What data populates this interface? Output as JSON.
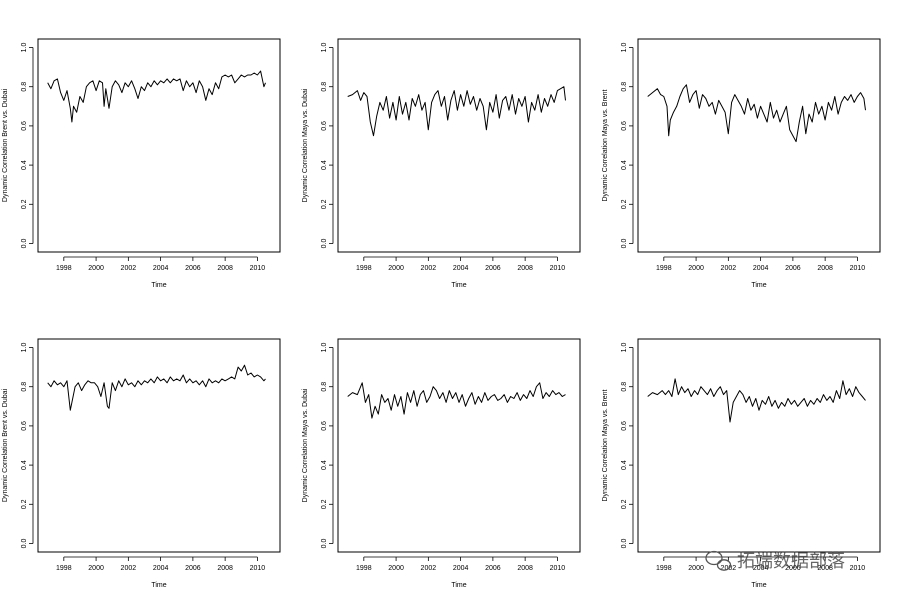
{
  "chart_data": [
    {
      "type": "line",
      "title": "",
      "xlabel": "Time",
      "ylabel": "Dynamic Correlation Brent vs. Dubai",
      "xlim": [
        1997.0,
        2010.8
      ],
      "ylim": [
        0.0,
        1.0
      ],
      "x_ticks": [
        "1998",
        "2000",
        "2002",
        "2004",
        "2006",
        "2008",
        "2010"
      ],
      "y_ticks": [
        "0.0",
        "0.2",
        "0.4",
        "0.6",
        "0.8",
        "1.0"
      ],
      "series": [
        {
          "x": [
            1997.0,
            1997.2,
            1997.4,
            1997.6,
            1997.8,
            1998.0,
            1998.2,
            1998.4,
            1998.5,
            1998.6,
            1998.8,
            1999.0,
            1999.2,
            1999.4,
            1999.6,
            1999.8,
            2000.0,
            2000.2,
            2000.4,
            2000.5,
            2000.6,
            2000.8,
            2001.0,
            2001.2,
            2001.4,
            2001.6,
            2001.8,
            2002.0,
            2002.2,
            2002.4,
            2002.6,
            2002.8,
            2003.0,
            2003.2,
            2003.4,
            2003.6,
            2003.8,
            2004.0,
            2004.2,
            2004.4,
            2004.6,
            2004.8,
            2005.0,
            2005.2,
            2005.4,
            2005.6,
            2005.8,
            2006.0,
            2006.2,
            2006.4,
            2006.6,
            2006.8,
            2007.0,
            2007.2,
            2007.4,
            2007.6,
            2007.8,
            2008.0,
            2008.2,
            2008.4,
            2008.6,
            2008.8,
            2009.0,
            2009.2,
            2009.4,
            2009.6,
            2009.8,
            2010.0,
            2010.2,
            2010.4,
            2010.5
          ],
          "y": [
            0.82,
            0.79,
            0.83,
            0.84,
            0.77,
            0.73,
            0.78,
            0.69,
            0.62,
            0.7,
            0.67,
            0.75,
            0.72,
            0.8,
            0.82,
            0.83,
            0.78,
            0.83,
            0.82,
            0.7,
            0.79,
            0.69,
            0.8,
            0.83,
            0.81,
            0.77,
            0.82,
            0.8,
            0.83,
            0.79,
            0.74,
            0.8,
            0.78,
            0.82,
            0.8,
            0.83,
            0.81,
            0.83,
            0.82,
            0.84,
            0.82,
            0.84,
            0.83,
            0.84,
            0.78,
            0.83,
            0.8,
            0.82,
            0.77,
            0.83,
            0.8,
            0.73,
            0.79,
            0.76,
            0.82,
            0.79,
            0.85,
            0.86,
            0.85,
            0.86,
            0.82,
            0.84,
            0.86,
            0.85,
            0.86,
            0.86,
            0.87,
            0.86,
            0.88,
            0.8,
            0.82
          ]
        }
      ]
    },
    {
      "type": "line",
      "title": "",
      "xlabel": "Time",
      "ylabel": "Dynamic Correlation Maya vs. Dubai",
      "xlim": [
        1997.0,
        2010.8
      ],
      "ylim": [
        0.0,
        1.0
      ],
      "x_ticks": [
        "1998",
        "2000",
        "2002",
        "2004",
        "2006",
        "2008",
        "2010"
      ],
      "y_ticks": [
        "0.0",
        "0.2",
        "0.4",
        "0.6",
        "0.8",
        "1.0"
      ],
      "series": [
        {
          "x": [
            1997.0,
            1997.3,
            1997.6,
            1997.8,
            1998.0,
            1998.2,
            1998.4,
            1998.6,
            1998.8,
            1999.0,
            1999.2,
            1999.4,
            1999.6,
            1999.8,
            2000.0,
            2000.2,
            2000.4,
            2000.6,
            2000.8,
            2001.0,
            2001.2,
            2001.4,
            2001.6,
            2001.8,
            2002.0,
            2002.2,
            2002.4,
            2002.6,
            2002.8,
            2003.0,
            2003.2,
            2003.4,
            2003.6,
            2003.8,
            2004.0,
            2004.2,
            2004.4,
            2004.6,
            2004.8,
            2005.0,
            2005.2,
            2005.4,
            2005.6,
            2005.8,
            2006.0,
            2006.2,
            2006.4,
            2006.6,
            2006.8,
            2007.0,
            2007.2,
            2007.4,
            2007.6,
            2007.8,
            2008.0,
            2008.2,
            2008.4,
            2008.6,
            2008.8,
            2009.0,
            2009.2,
            2009.4,
            2009.6,
            2009.8,
            2010.0,
            2010.2,
            2010.4,
            2010.5
          ],
          "y": [
            0.75,
            0.76,
            0.78,
            0.73,
            0.77,
            0.75,
            0.62,
            0.55,
            0.65,
            0.72,
            0.68,
            0.75,
            0.64,
            0.72,
            0.63,
            0.75,
            0.66,
            0.72,
            0.63,
            0.74,
            0.7,
            0.76,
            0.68,
            0.72,
            0.58,
            0.72,
            0.76,
            0.78,
            0.7,
            0.75,
            0.63,
            0.73,
            0.78,
            0.68,
            0.76,
            0.7,
            0.78,
            0.71,
            0.75,
            0.68,
            0.74,
            0.7,
            0.58,
            0.72,
            0.67,
            0.76,
            0.64,
            0.73,
            0.75,
            0.68,
            0.76,
            0.66,
            0.74,
            0.7,
            0.75,
            0.62,
            0.72,
            0.68,
            0.76,
            0.67,
            0.74,
            0.7,
            0.76,
            0.72,
            0.78,
            0.79,
            0.8,
            0.73
          ]
        }
      ]
    },
    {
      "type": "line",
      "title": "",
      "xlabel": "Time",
      "ylabel": "Dynamic Correlation Maya vs. Brent",
      "xlim": [
        1997.0,
        2010.8
      ],
      "ylim": [
        0.0,
        1.0
      ],
      "x_ticks": [
        "1998",
        "2000",
        "2002",
        "2004",
        "2006",
        "2008",
        "2010"
      ],
      "y_ticks": [
        "0.0",
        "0.2",
        "0.4",
        "0.6",
        "0.8",
        "1.0"
      ],
      "series": [
        {
          "x": [
            1997.0,
            1997.3,
            1997.6,
            1997.8,
            1998.0,
            1998.2,
            1998.3,
            1998.4,
            1998.6,
            1998.8,
            1999.0,
            1999.2,
            1999.4,
            1999.6,
            1999.8,
            2000.0,
            2000.2,
            2000.4,
            2000.6,
            2000.8,
            2001.0,
            2001.2,
            2001.4,
            2001.6,
            2001.8,
            2002.0,
            2002.2,
            2002.4,
            2002.6,
            2002.8,
            2003.0,
            2003.2,
            2003.4,
            2003.6,
            2003.8,
            2004.0,
            2004.2,
            2004.4,
            2004.6,
            2004.8,
            2005.0,
            2005.2,
            2005.4,
            2005.6,
            2005.8,
            2006.0,
            2006.2,
            2006.4,
            2006.6,
            2006.8,
            2007.0,
            2007.2,
            2007.4,
            2007.6,
            2007.8,
            2008.0,
            2008.2,
            2008.4,
            2008.6,
            2008.8,
            2009.0,
            2009.2,
            2009.4,
            2009.6,
            2009.8,
            2010.0,
            2010.2,
            2010.4,
            2010.5
          ],
          "y": [
            0.75,
            0.77,
            0.79,
            0.76,
            0.75,
            0.7,
            0.55,
            0.63,
            0.67,
            0.7,
            0.75,
            0.79,
            0.81,
            0.72,
            0.76,
            0.78,
            0.69,
            0.76,
            0.74,
            0.7,
            0.72,
            0.66,
            0.73,
            0.7,
            0.67,
            0.56,
            0.72,
            0.76,
            0.73,
            0.7,
            0.66,
            0.74,
            0.68,
            0.71,
            0.64,
            0.7,
            0.66,
            0.62,
            0.72,
            0.64,
            0.68,
            0.62,
            0.66,
            0.7,
            0.58,
            0.55,
            0.52,
            0.62,
            0.7,
            0.56,
            0.66,
            0.62,
            0.72,
            0.66,
            0.7,
            0.63,
            0.72,
            0.68,
            0.75,
            0.66,
            0.72,
            0.75,
            0.73,
            0.76,
            0.72,
            0.75,
            0.77,
            0.74,
            0.68
          ]
        }
      ]
    },
    {
      "type": "line",
      "title": "",
      "xlabel": "Time",
      "ylabel": "Dynamic Correlation Brent vs. Dubai",
      "xlim": [
        1997.0,
        2010.8
      ],
      "ylim": [
        0.0,
        1.0
      ],
      "x_ticks": [
        "1998",
        "2000",
        "2002",
        "2004",
        "2006",
        "2008",
        "2010"
      ],
      "y_ticks": [
        "0.0",
        "0.2",
        "0.4",
        "0.6",
        "0.8",
        "1.0"
      ],
      "series": [
        {
          "x": [
            1997.0,
            1997.2,
            1997.4,
            1997.6,
            1997.8,
            1998.0,
            1998.2,
            1998.4,
            1998.5,
            1998.7,
            1998.9,
            1999.1,
            1999.3,
            1999.5,
            1999.7,
            1999.9,
            2000.1,
            2000.3,
            2000.5,
            2000.7,
            2000.8,
            2001.0,
            2001.2,
            2001.4,
            2001.6,
            2001.8,
            2002.0,
            2002.2,
            2002.4,
            2002.6,
            2002.8,
            2003.0,
            2003.2,
            2003.4,
            2003.6,
            2003.8,
            2004.0,
            2004.2,
            2004.4,
            2004.6,
            2004.8,
            2005.0,
            2005.2,
            2005.4,
            2005.6,
            2005.8,
            2006.0,
            2006.2,
            2006.4,
            2006.6,
            2006.8,
            2007.0,
            2007.2,
            2007.4,
            2007.6,
            2007.8,
            2008.0,
            2008.2,
            2008.4,
            2008.6,
            2008.8,
            2009.0,
            2009.2,
            2009.4,
            2009.6,
            2009.8,
            2010.0,
            2010.2,
            2010.4,
            2010.5
          ],
          "y": [
            0.82,
            0.8,
            0.83,
            0.81,
            0.82,
            0.8,
            0.83,
            0.68,
            0.72,
            0.8,
            0.82,
            0.78,
            0.81,
            0.83,
            0.82,
            0.82,
            0.8,
            0.75,
            0.82,
            0.7,
            0.69,
            0.82,
            0.78,
            0.83,
            0.8,
            0.84,
            0.81,
            0.82,
            0.8,
            0.83,
            0.81,
            0.83,
            0.82,
            0.84,
            0.82,
            0.85,
            0.83,
            0.84,
            0.82,
            0.85,
            0.83,
            0.84,
            0.83,
            0.86,
            0.82,
            0.84,
            0.82,
            0.83,
            0.81,
            0.83,
            0.8,
            0.84,
            0.82,
            0.83,
            0.82,
            0.84,
            0.83,
            0.84,
            0.85,
            0.84,
            0.9,
            0.88,
            0.91,
            0.86,
            0.87,
            0.85,
            0.86,
            0.85,
            0.83,
            0.84
          ]
        }
      ]
    },
    {
      "type": "line",
      "title": "",
      "xlabel": "Time",
      "ylabel": "Dynamic Correlation Maya vs. Dubai",
      "xlim": [
        1997.0,
        2010.8
      ],
      "ylim": [
        0.0,
        1.0
      ],
      "x_ticks": [
        "1998",
        "2000",
        "2002",
        "2004",
        "2006",
        "2008",
        "2010"
      ],
      "y_ticks": [
        "0.0",
        "0.2",
        "0.4",
        "0.6",
        "0.8",
        "1.0"
      ],
      "series": [
        {
          "x": [
            1997.0,
            1997.3,
            1997.6,
            1997.9,
            1998.1,
            1998.3,
            1998.5,
            1998.7,
            1998.9,
            1999.1,
            1999.3,
            1999.5,
            1999.7,
            1999.9,
            2000.1,
            2000.3,
            2000.5,
            2000.7,
            2000.9,
            2001.1,
            2001.3,
            2001.5,
            2001.7,
            2001.9,
            2002.1,
            2002.3,
            2002.5,
            2002.7,
            2002.9,
            2003.1,
            2003.3,
            2003.5,
            2003.7,
            2003.9,
            2004.1,
            2004.3,
            2004.5,
            2004.7,
            2004.9,
            2005.1,
            2005.3,
            2005.5,
            2005.7,
            2005.9,
            2006.1,
            2006.3,
            2006.5,
            2006.7,
            2006.9,
            2007.1,
            2007.3,
            2007.5,
            2007.7,
            2007.9,
            2008.1,
            2008.3,
            2008.5,
            2008.7,
            2008.9,
            2009.1,
            2009.3,
            2009.5,
            2009.7,
            2009.9,
            2010.1,
            2010.3,
            2010.5
          ],
          "y": [
            0.75,
            0.77,
            0.76,
            0.82,
            0.72,
            0.76,
            0.64,
            0.7,
            0.66,
            0.76,
            0.72,
            0.74,
            0.68,
            0.76,
            0.7,
            0.75,
            0.66,
            0.77,
            0.72,
            0.78,
            0.7,
            0.76,
            0.78,
            0.72,
            0.75,
            0.8,
            0.78,
            0.74,
            0.77,
            0.72,
            0.78,
            0.74,
            0.77,
            0.72,
            0.76,
            0.7,
            0.74,
            0.77,
            0.71,
            0.75,
            0.72,
            0.77,
            0.73,
            0.75,
            0.76,
            0.73,
            0.74,
            0.76,
            0.72,
            0.75,
            0.74,
            0.77,
            0.73,
            0.76,
            0.74,
            0.78,
            0.75,
            0.8,
            0.82,
            0.74,
            0.77,
            0.75,
            0.78,
            0.76,
            0.77,
            0.75,
            0.76
          ]
        }
      ]
    },
    {
      "type": "line",
      "title": "",
      "xlabel": "Time",
      "ylabel": "Dynamic Correlation Maya vs. Brent",
      "xlim": [
        1997.0,
        2010.8
      ],
      "ylim": [
        0.0,
        1.0
      ],
      "x_ticks": [
        "1998",
        "2000",
        "2002",
        "2004",
        "2006",
        "2008",
        "2010"
      ],
      "y_ticks": [
        "0.0",
        "0.2",
        "0.4",
        "0.6",
        "0.8",
        "1.0"
      ],
      "series": [
        {
          "x": [
            1997.0,
            1997.3,
            1997.6,
            1997.9,
            1998.1,
            1998.3,
            1998.5,
            1998.7,
            1998.9,
            1999.1,
            1999.3,
            1999.5,
            1999.7,
            1999.9,
            2000.1,
            2000.3,
            2000.5,
            2000.7,
            2000.9,
            2001.1,
            2001.3,
            2001.5,
            2001.7,
            2001.9,
            2002.1,
            2002.3,
            2002.5,
            2002.7,
            2002.9,
            2003.1,
            2003.3,
            2003.5,
            2003.7,
            2003.9,
            2004.1,
            2004.3,
            2004.5,
            2004.7,
            2004.9,
            2005.1,
            2005.3,
            2005.5,
            2005.7,
            2005.9,
            2006.1,
            2006.3,
            2006.5,
            2006.7,
            2006.9,
            2007.1,
            2007.3,
            2007.5,
            2007.7,
            2007.9,
            2008.1,
            2008.3,
            2008.5,
            2008.7,
            2008.9,
            2009.1,
            2009.3,
            2009.5,
            2009.7,
            2009.9,
            2010.1,
            2010.3,
            2010.5
          ],
          "y": [
            0.75,
            0.77,
            0.76,
            0.78,
            0.76,
            0.78,
            0.75,
            0.84,
            0.76,
            0.8,
            0.77,
            0.79,
            0.75,
            0.78,
            0.76,
            0.8,
            0.78,
            0.76,
            0.79,
            0.75,
            0.78,
            0.8,
            0.76,
            0.78,
            0.62,
            0.72,
            0.75,
            0.78,
            0.76,
            0.72,
            0.75,
            0.7,
            0.74,
            0.68,
            0.73,
            0.71,
            0.75,
            0.7,
            0.73,
            0.69,
            0.72,
            0.7,
            0.74,
            0.71,
            0.73,
            0.7,
            0.72,
            0.74,
            0.7,
            0.73,
            0.71,
            0.74,
            0.72,
            0.76,
            0.73,
            0.75,
            0.72,
            0.78,
            0.74,
            0.83,
            0.76,
            0.79,
            0.75,
            0.8,
            0.77,
            0.75,
            0.73
          ]
        }
      ]
    }
  ],
  "watermark": {
    "text": "拓端数据部落",
    "icon": "wechat-icon"
  }
}
